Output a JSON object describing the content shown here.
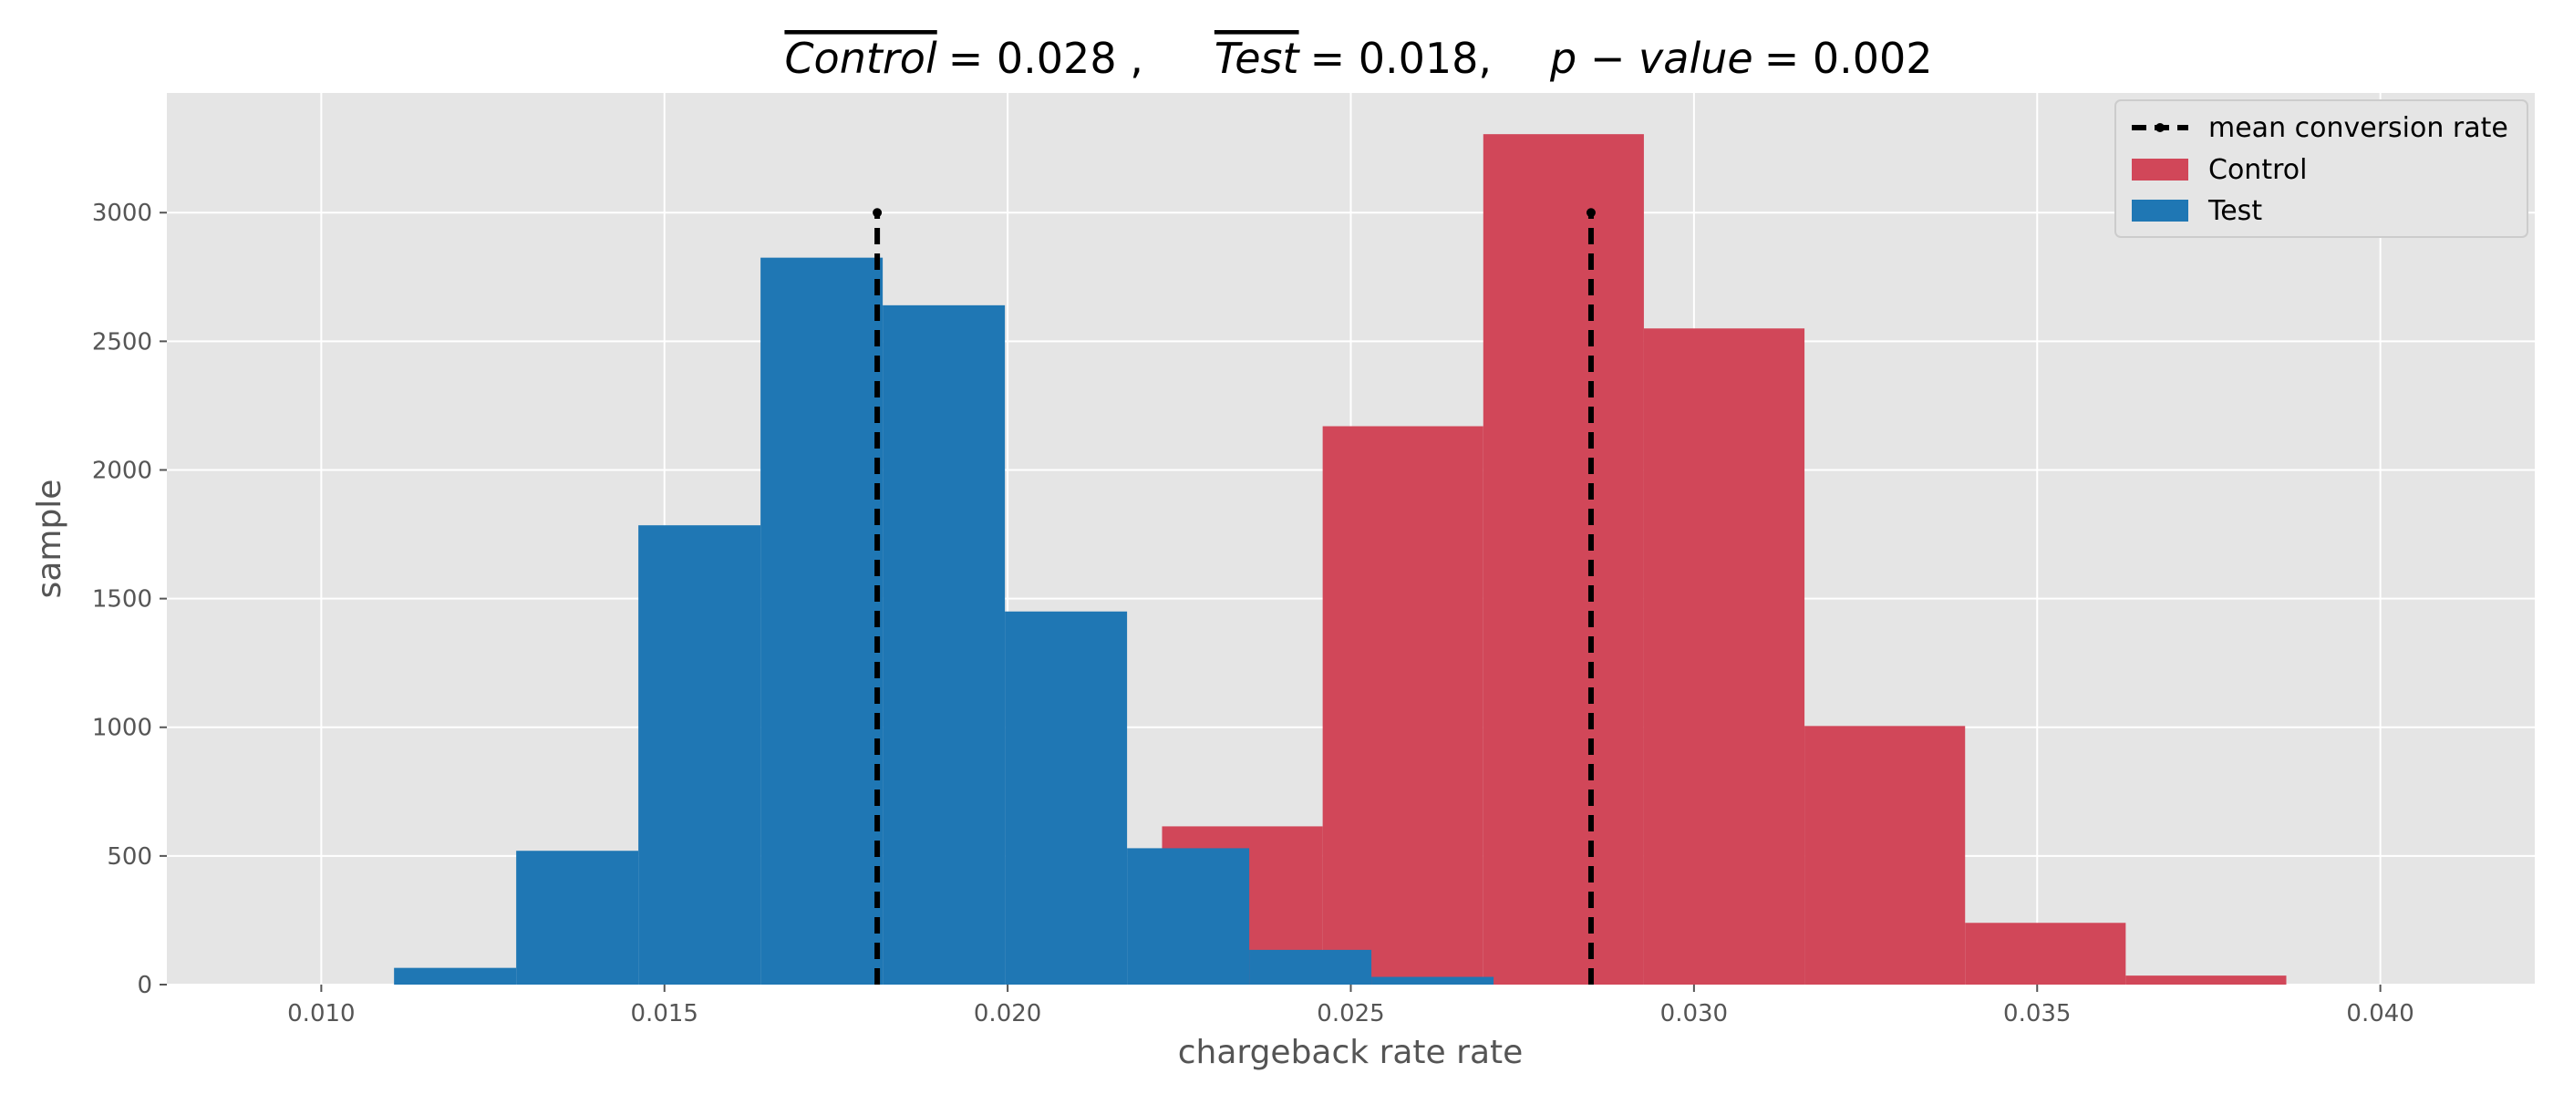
{
  "chart_data": {
    "type": "bar",
    "title_parts": {
      "control_label": "Control",
      "control_value": "= 0.028 ,",
      "test_label": "Test",
      "test_value": "= 0.018,",
      "p_label": "p − value",
      "p_value": "= 0.002"
    },
    "xlabel": "chargeback rate rate",
    "ylabel": "sample",
    "xlim": [
      0.00775,
      0.04225
    ],
    "ylim": [
      0,
      3465
    ],
    "xticks": [
      0.01,
      0.015,
      0.02,
      0.025,
      0.03,
      0.035,
      0.04
    ],
    "xtick_labels": [
      "0.010",
      "0.015",
      "0.020",
      "0.025",
      "0.030",
      "0.035",
      "0.040"
    ],
    "yticks": [
      0,
      500,
      1000,
      1500,
      2000,
      2500,
      3000
    ],
    "ytick_labels": [
      "0",
      "500",
      "1000",
      "1500",
      "2000",
      "2500",
      "3000"
    ],
    "grid": true,
    "legend_position": "top-right",
    "legend": {
      "mean_label": "mean conversion rate",
      "control_label": "Control",
      "test_label": "Test"
    },
    "colors": {
      "control": "#D14759",
      "test": "#1F77B4",
      "mean_line": "#000000",
      "plot_bg": "#E5E5E5",
      "grid": "#FFFFFF"
    },
    "series": [
      {
        "name": "Control",
        "bin_edges": [
          0.02225,
          0.02459,
          0.02693,
          0.02927,
          0.03161,
          0.03395,
          0.03629,
          0.03863
        ],
        "counts": [
          615,
          2170,
          3305,
          2550,
          1005,
          240,
          35
        ]
      },
      {
        "name": "Test",
        "bin_edges": [
          0.01106,
          0.01284,
          0.01462,
          0.0164,
          0.01818,
          0.01996,
          0.02174,
          0.02352,
          0.0253,
          0.02708
        ],
        "counts": [
          65,
          520,
          1785,
          2825,
          2640,
          1450,
          530,
          135,
          30
        ]
      }
    ],
    "mean_lines": [
      {
        "x": 0.0181,
        "y": 3000
      },
      {
        "x": 0.0285,
        "y": 3000
      }
    ]
  }
}
